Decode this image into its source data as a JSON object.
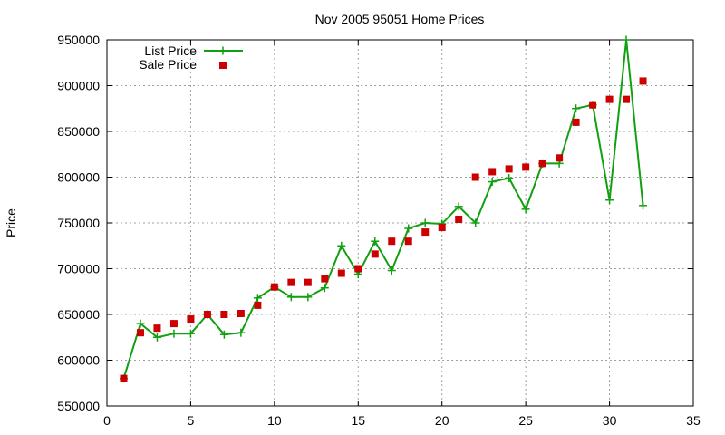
{
  "colors": {
    "list_price": "#10a010",
    "sale_price": "#cc0000"
  },
  "chart_data": {
    "type": "line",
    "title": "Nov 2005 95051 Home Prices",
    "xlabel": "",
    "ylabel": "Price",
    "xlim": [
      0,
      35
    ],
    "ylim": [
      550000,
      950000
    ],
    "x_ticks": [
      0,
      5,
      10,
      15,
      20,
      25,
      30,
      35
    ],
    "y_ticks": [
      550000,
      600000,
      650000,
      700000,
      750000,
      800000,
      850000,
      900000,
      950000
    ],
    "grid": true,
    "legend_position": "top-left",
    "series": [
      {
        "name": "List Price",
        "style": "lines+points",
        "marker": "plus",
        "x": [
          1,
          2,
          3,
          4,
          5,
          6,
          7,
          8,
          9,
          10,
          11,
          12,
          13,
          14,
          15,
          16,
          17,
          18,
          19,
          20,
          21,
          22,
          23,
          24,
          25,
          26,
          27,
          28,
          29,
          30,
          31,
          32
        ],
        "y": [
          580000,
          640000,
          625000,
          629000,
          629000,
          650000,
          628000,
          630000,
          668000,
          680000,
          669000,
          669000,
          679000,
          725000,
          694000,
          730000,
          698000,
          744000,
          750000,
          749000,
          768000,
          750000,
          795000,
          799000,
          765000,
          815000,
          815000,
          875000,
          879000,
          775000,
          950000,
          769000
        ]
      },
      {
        "name": "Sale Price",
        "style": "points",
        "marker": "square",
        "x": [
          1,
          2,
          3,
          4,
          5,
          6,
          7,
          8,
          9,
          10,
          11,
          12,
          13,
          14,
          15,
          16,
          17,
          18,
          19,
          20,
          21,
          22,
          23,
          24,
          25,
          26,
          27,
          28,
          29,
          30,
          31,
          32
        ],
        "y": [
          580000,
          630000,
          635000,
          640000,
          645000,
          650000,
          650000,
          651000,
          660000,
          680000,
          685000,
          685000,
          689000,
          695000,
          700000,
          716000,
          730000,
          730000,
          740000,
          745000,
          754000,
          800000,
          806000,
          809000,
          811000,
          815000,
          821000,
          860000,
          879000,
          885000,
          885000,
          905000
        ]
      }
    ]
  }
}
